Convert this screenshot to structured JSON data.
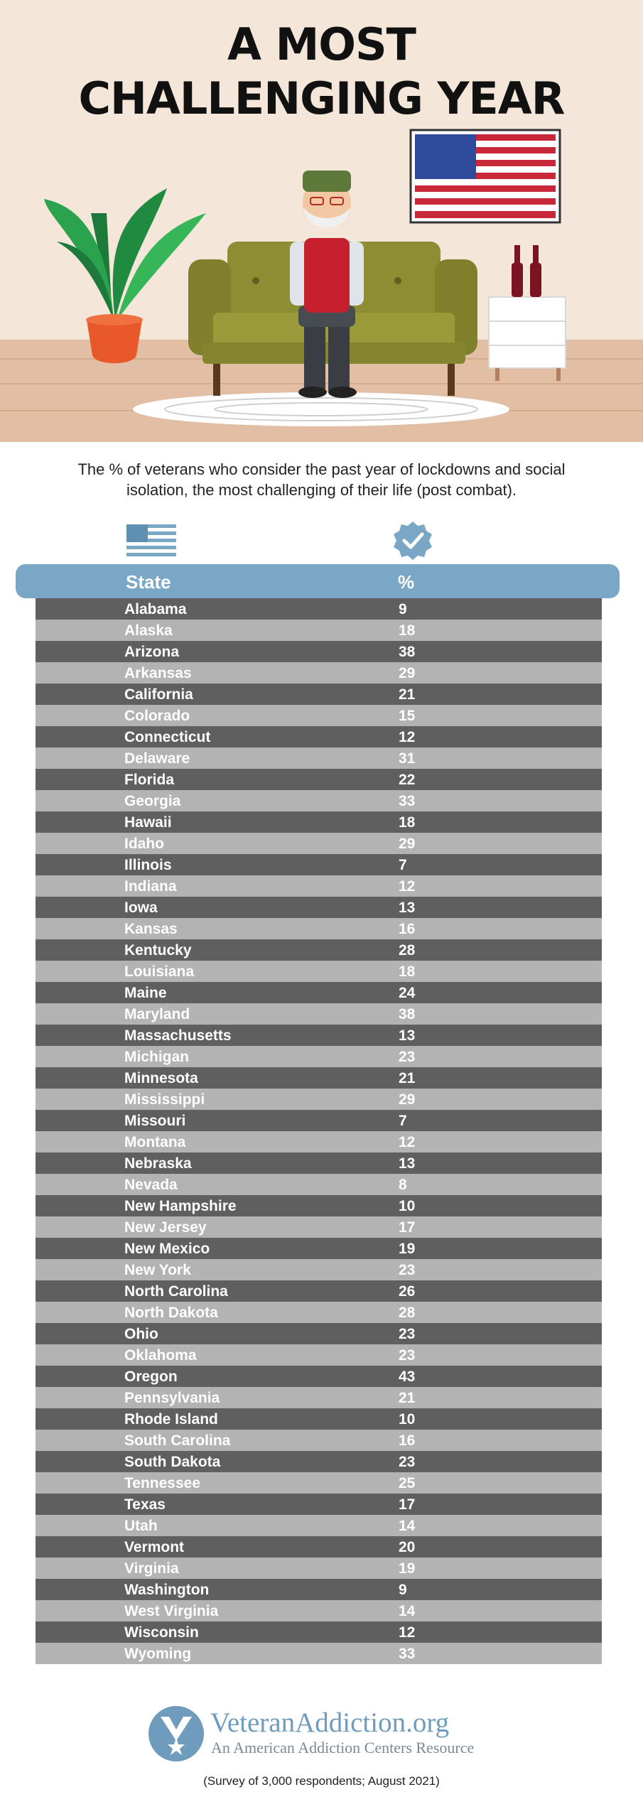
{
  "title": {
    "line1": "A MOST",
    "line2": "CHALLENGING YEAR"
  },
  "subtitle": {
    "line1": "The % of veterans who consider the past year of lockdowns and social",
    "line2": "isolation, the most challenging of their life (post combat)."
  },
  "table": {
    "headers": {
      "state": "State",
      "percent": "%"
    },
    "rows": [
      {
        "state": "Alabama",
        "percent": "9"
      },
      {
        "state": "Alaska",
        "percent": "18"
      },
      {
        "state": "Arizona",
        "percent": "38"
      },
      {
        "state": "Arkansas",
        "percent": "29"
      },
      {
        "state": "California",
        "percent": "21"
      },
      {
        "state": "Colorado",
        "percent": "15"
      },
      {
        "state": "Connecticut",
        "percent": "12"
      },
      {
        "state": "Delaware",
        "percent": "31"
      },
      {
        "state": "Florida",
        "percent": "22"
      },
      {
        "state": "Georgia",
        "percent": "33"
      },
      {
        "state": "Hawaii",
        "percent": "18"
      },
      {
        "state": "Idaho",
        "percent": "29"
      },
      {
        "state": "Illinois",
        "percent": "7"
      },
      {
        "state": "Indiana",
        "percent": "12"
      },
      {
        "state": "Iowa",
        "percent": "13"
      },
      {
        "state": "Kansas",
        "percent": "16"
      },
      {
        "state": "Kentucky",
        "percent": "28"
      },
      {
        "state": "Louisiana",
        "percent": "18"
      },
      {
        "state": "Maine",
        "percent": "24"
      },
      {
        "state": "Maryland",
        "percent": "38"
      },
      {
        "state": "Massachusetts",
        "percent": "13"
      },
      {
        "state": "Michigan",
        "percent": "23"
      },
      {
        "state": "Minnesota",
        "percent": "21"
      },
      {
        "state": "Mississippi",
        "percent": "29"
      },
      {
        "state": "Missouri",
        "percent": "7"
      },
      {
        "state": "Montana",
        "percent": "12"
      },
      {
        "state": "Nebraska",
        "percent": "13"
      },
      {
        "state": "Nevada",
        "percent": "8"
      },
      {
        "state": "New Hampshire",
        "percent": "10"
      },
      {
        "state": "New Jersey",
        "percent": "17"
      },
      {
        "state": "New Mexico",
        "percent": "19"
      },
      {
        "state": "New York",
        "percent": "23"
      },
      {
        "state": "North Carolina",
        "percent": "26"
      },
      {
        "state": "North Dakota",
        "percent": "28"
      },
      {
        "state": "Ohio",
        "percent": "23"
      },
      {
        "state": "Oklahoma",
        "percent": "23"
      },
      {
        "state": "Oregon",
        "percent": "43"
      },
      {
        "state": "Pennsylvania",
        "percent": "21"
      },
      {
        "state": "Rhode Island",
        "percent": "10"
      },
      {
        "state": "South Carolina",
        "percent": "16"
      },
      {
        "state": "South Dakota",
        "percent": "23"
      },
      {
        "state": "Tennessee",
        "percent": "25"
      },
      {
        "state": "Texas",
        "percent": "17"
      },
      {
        "state": "Utah",
        "percent": "14"
      },
      {
        "state": "Vermont",
        "percent": "20"
      },
      {
        "state": "Virginia",
        "percent": "19"
      },
      {
        "state": "Washington",
        "percent": "9"
      },
      {
        "state": "West Virginia",
        "percent": "14"
      },
      {
        "state": "Wisconsin",
        "percent": "12"
      },
      {
        "state": "Wyoming",
        "percent": "33"
      }
    ]
  },
  "logo": {
    "name": "VeteranAddiction.org",
    "tagline": "An American Addiction Centers Resource"
  },
  "footnote": "(Survey of 3,000 respondents; August 2021)",
  "colors": {
    "header_band": "#7aa7c6",
    "row_dark": "#5f5f5f",
    "row_light": "#b3b3b3",
    "logo_blue": "#6f9cbc"
  },
  "icons": {
    "state_column": "us-flag-icon",
    "percent_column": "checkmark-badge-icon",
    "logo": "star-shield-logo"
  }
}
